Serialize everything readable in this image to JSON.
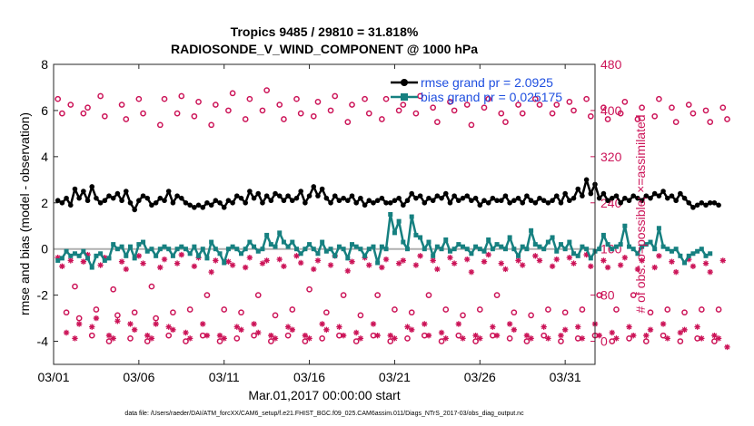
{
  "chart_data": {
    "type": "line",
    "title_line1": "Tropics 9485 / 29810 = 31.818%",
    "title_line2": "RADIOSONDE_V_WIND_COMPONENT @ 1000 hPa",
    "xlabel": "Mar.01,2017 00:00:00 start",
    "ylabel_left": "rmse and bias (model - observation)",
    "ylabel_right": "# of obs: o=possible; ×=assimilated",
    "footer": "data file: /Users/raeder/DAI/ATM_forcXX/CAM6_setup/f.e21.FHIST_BGC.f09_025.CAM6assim.011/Diags_NTrS_2017-03/obs_diag_output.nc",
    "x_range": [
      0,
      31.75
    ],
    "x_ticks": [
      0,
      5,
      10,
      15,
      20,
      25,
      30
    ],
    "x_tick_labels": [
      "03/01",
      "03/06",
      "03/11",
      "03/16",
      "03/21",
      "03/26",
      "03/31"
    ],
    "ylim_left": [
      -5,
      8
    ],
    "y_ticks_left": [
      -4,
      -2,
      0,
      2,
      4,
      6,
      8
    ],
    "y_tick_labels_left": [
      "-4",
      "-2",
      "0",
      "2",
      "4",
      "6",
      "8"
    ],
    "ylim_right": [
      -40,
      480
    ],
    "y_ticks_right": [
      0,
      80,
      160,
      240,
      320,
      400,
      480
    ],
    "y_tick_labels_right": [
      "0",
      "80",
      "160",
      "240",
      "320",
      "400",
      "480"
    ],
    "zero_line": 0,
    "colors": {
      "rmse": "#000000",
      "bias": "#168080",
      "obs": "#cc1458",
      "legend_text": "#1f4fe0",
      "zero_line": "#b0b0b0",
      "right_axis": "#cc1458"
    },
    "series": [
      {
        "name": "rmse",
        "legend": "rmse grand pr = 2.0925",
        "axis": "left",
        "values": [
          2.1,
          2.0,
          2.2,
          1.9,
          2.6,
          2.2,
          2.5,
          2.1,
          2.7,
          2.2,
          2.0,
          2.1,
          2.3,
          2.2,
          2.4,
          2.1,
          2.5,
          2.0,
          1.7,
          2.1,
          2.3,
          2.2,
          1.9,
          2.0,
          2.2,
          2.1,
          2.5,
          2.0,
          2.3,
          2.2,
          2.0,
          1.9,
          1.8,
          1.9,
          1.8,
          2.0,
          1.9,
          2.1,
          2.0,
          1.8,
          2.1,
          2.0,
          2.3,
          2.2,
          2.0,
          2.5,
          2.2,
          2.4,
          2.0,
          2.3,
          2.1,
          2.4,
          2.3,
          2.1,
          2.3,
          2.1,
          2.2,
          2.5,
          2.0,
          2.3,
          2.7,
          2.3,
          2.6,
          2.2,
          2.0,
          2.3,
          2.1,
          2.2,
          2.1,
          2.3,
          2.0,
          2.2,
          1.9,
          2.1,
          2.0,
          2.1,
          2.2,
          2.0,
          2.0,
          2.1,
          2.2,
          1.9,
          2.1,
          2.4,
          2.2,
          2.3,
          2.0,
          2.2,
          2.1,
          2.3,
          2.2,
          2.4,
          2.0,
          2.3,
          2.1,
          2.2,
          2.3,
          2.1,
          2.2,
          1.9,
          2.1,
          2.0,
          2.2,
          2.1,
          2.1,
          2.3,
          2.0,
          2.1,
          2.2,
          2.0,
          2.3,
          2.1,
          2.0,
          2.2,
          2.1,
          2.0,
          2.1,
          2.3,
          2.0,
          2.4,
          2.1,
          2.2,
          2.6,
          2.3,
          3.0,
          2.4,
          2.8,
          2.2,
          2.4,
          2.1,
          2.2,
          2.3,
          2.0,
          2.2,
          2.1,
          2.3,
          2.2,
          2.1,
          2.3,
          2.2,
          2.4,
          2.3,
          2.5,
          2.2,
          2.3,
          2.1,
          2.4,
          2.2,
          2.0,
          1.8,
          1.9,
          2.0,
          1.9,
          2.0,
          2.0,
          1.9
        ]
      },
      {
        "name": "bias",
        "legend": "bias grand pr = 0.025175",
        "axis": "left",
        "values": [
          -0.5,
          -0.4,
          -0.1,
          -0.3,
          -0.2,
          -0.3,
          -0.1,
          -0.4,
          -0.8,
          -0.3,
          -0.2,
          -0.5,
          -0.4,
          0.2,
          0.0,
          0.1,
          -0.3,
          0.1,
          -0.4,
          0.2,
          0.3,
          -0.1,
          0.0,
          -0.3,
          0.0,
          0.1,
          0.0,
          -0.3,
          0.0,
          0.1,
          0.0,
          -0.2,
          0.1,
          -0.3,
          0.0,
          -0.4,
          0.3,
          0.0,
          -0.2,
          -0.6,
          0.0,
          0.1,
          0.0,
          -0.2,
          0.0,
          0.3,
          0.1,
          -0.1,
          0.0,
          0.6,
          0.2,
          0.1,
          0.7,
          0.3,
          0.1,
          0.3,
          0.0,
          -0.2,
          0.0,
          0.2,
          0.0,
          -0.2,
          0.3,
          -0.1,
          0.0,
          -0.3,
          0.1,
          0.0,
          -0.4,
          0.2,
          0.1,
          0.0,
          -0.3,
          0.0,
          0.1,
          -0.6,
          0.1,
          0.0,
          1.5,
          0.7,
          1.2,
          0.3,
          0.0,
          1.4,
          0.6,
          0.5,
          0.0,
          0.3,
          -0.3,
          0.1,
          0.0,
          0.4,
          -0.1,
          0.0,
          0.2,
          0.1,
          0.0,
          -0.2,
          0.1,
          0.0,
          -0.1,
          0.4,
          0.0,
          0.2,
          0.1,
          0.0,
          0.5,
          0.0,
          -0.3,
          0.1,
          0.0,
          0.8,
          0.2,
          0.1,
          0.0,
          0.3,
          0.5,
          -0.1,
          0.2,
          0.0,
          0.3,
          -0.2,
          -0.3,
          0.1,
          0.0,
          -0.4,
          -0.1,
          0.0,
          0.6,
          0.2,
          0.0,
          0.1,
          0.2,
          1.0,
          0.1,
          0.0,
          -0.2,
          0.1,
          0.2,
          0.3,
          0.0,
          0.9,
          0.1,
          0.0,
          -0.1,
          0.0,
          -0.3,
          -0.6,
          -0.3,
          -0.2,
          -0.1,
          0.0,
          -0.3,
          -0.2
        ]
      },
      {
        "name": "possible",
        "legend": "o=possible",
        "axis": "right",
        "values": [
          420,
          395,
          50,
          410,
          95,
          40,
          395,
          405,
          10,
          55,
          425,
          390,
          0,
          90,
          45,
          410,
          385,
          5,
          50,
          420,
          395,
          0,
          95,
          40,
          375,
          420,
          10,
          50,
          395,
          425,
          0,
          55,
          390,
          415,
          10,
          80,
          375,
          410,
          0,
          55,
          400,
          430,
          5,
          50,
          385,
          420,
          10,
          80,
          400,
          435,
          0,
          45,
          410,
          385,
          10,
          55,
          420,
          395,
          0,
          90,
          390,
          415,
          5,
          50,
          400,
          425,
          10,
          80,
          380,
          410,
          0,
          45,
          420,
          395,
          10,
          80,
          385,
          420,
          0,
          55,
          400,
          410,
          5,
          50,
          395,
          425,
          10,
          80,
          405,
          380,
          0,
          55,
          415,
          400,
          10,
          45,
          410,
          375,
          0,
          55,
          405,
          420,
          10,
          80,
          395,
          380,
          5,
          50,
          410,
          395,
          0,
          45,
          420,
          410,
          10,
          55,
          395,
          410,
          0,
          50,
          415,
          400,
          5,
          55,
          420,
          390,
          10,
          80,
          405,
          385,
          0,
          55,
          395,
          415,
          5,
          80,
          385,
          405,
          0,
          50,
          390,
          420,
          10,
          55,
          405,
          380,
          0,
          50,
          410,
          395,
          5,
          55,
          400,
          380,
          0,
          55,
          405,
          385
        ]
      },
      {
        "name": "assimilated",
        "legend": "×=assimilated",
        "axis": "right",
        "values": [
          145,
          130,
          15,
          140,
          5,
          30,
          138,
          150,
          25,
          40,
          132,
          145,
          10,
          5,
          35,
          138,
          125,
          30,
          20,
          148,
          135,
          10,
          5,
          30,
          128,
          142,
          25,
          20,
          135,
          150,
          15,
          5,
          130,
          145,
          30,
          10,
          120,
          140,
          10,
          5,
          138,
          132,
          25,
          20,
          128,
          145,
          30,
          15,
          135,
          140,
          10,
          5,
          142,
          130,
          25,
          20,
          148,
          136,
          10,
          5,
          125,
          140,
          30,
          20,
          132,
          148,
          25,
          10,
          122,
          138,
          15,
          5,
          145,
          132,
          30,
          10,
          128,
          142,
          10,
          5,
          135,
          140,
          25,
          20,
          132,
          148,
          30,
          10,
          140,
          125,
          15,
          5,
          145,
          135,
          30,
          5,
          142,
          120,
          10,
          5,
          138,
          150,
          25,
          10,
          135,
          125,
          30,
          20,
          140,
          132,
          10,
          5,
          148,
          140,
          25,
          5,
          130,
          142,
          10,
          20,
          145,
          135,
          25,
          5,
          150,
          130,
          30,
          10,
          140,
          128,
          15,
          5,
          132,
          145,
          25,
          10,
          125,
          140,
          10,
          20,
          128,
          148,
          30,
          5,
          138,
          120,
          15,
          20,
          142,
          130,
          25,
          5,
          135,
          120,
          10,
          5,
          140,
          -10
        ]
      }
    ]
  }
}
